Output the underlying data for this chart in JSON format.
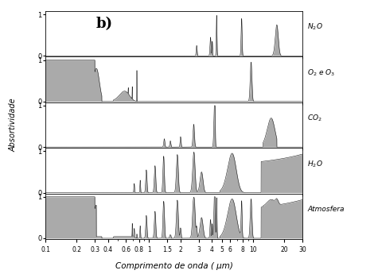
{
  "xlabel": "Comprimento de onda ( μm)",
  "ylabel": "Absortividade",
  "panel_labels": [
    "N$_2$O",
    "O$_2$ e O$_3$",
    "CO$_2$",
    "H$_2$O",
    "Atmosfera"
  ],
  "x_ticks": [
    0.1,
    0.2,
    0.3,
    0.4,
    0.6,
    0.8,
    1.0,
    1.5,
    2.0,
    3.0,
    4.0,
    5.0,
    6.0,
    8.0,
    10.0,
    20.0,
    30.0
  ],
  "x_tick_labels": [
    "0.1",
    "0.2",
    "0.3",
    "0.4",
    "0.6",
    "0.8",
    "1",
    "1.5",
    "2",
    "3",
    "4",
    "5",
    "6",
    "8",
    "10",
    "20",
    "30"
  ],
  "xmin": 0.1,
  "xmax": 30.0,
  "fill_color": "#aaaaaa",
  "line_color": "#222222",
  "subtitle": "b)"
}
